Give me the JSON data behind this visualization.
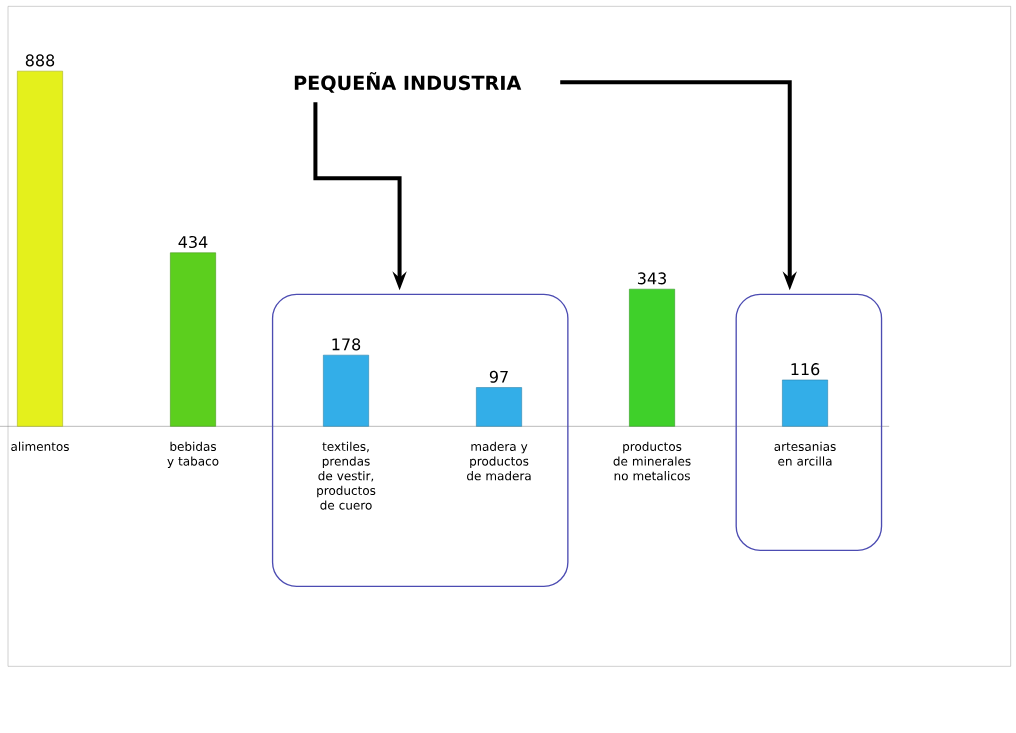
{
  "chart_data": {
    "type": "bar",
    "categories": [
      "alimentos",
      "bebidas y tabaco",
      "textiles, prendas de vestir, productos de cuero",
      "madera y productos de madera",
      "productos de minerales no metalicos",
      "artesanias en arcilla"
    ],
    "values": [
      888,
      434,
      178,
      97,
      343,
      116
    ],
    "colors": [
      "#e4f01c",
      "#5ccf1e",
      "#33aee8",
      "#33aee8",
      "#3fd02a",
      "#33aee8"
    ],
    "data_labels": true,
    "annotations": [
      "PEQUEÑA INDUSTRIA"
    ]
  }
}
